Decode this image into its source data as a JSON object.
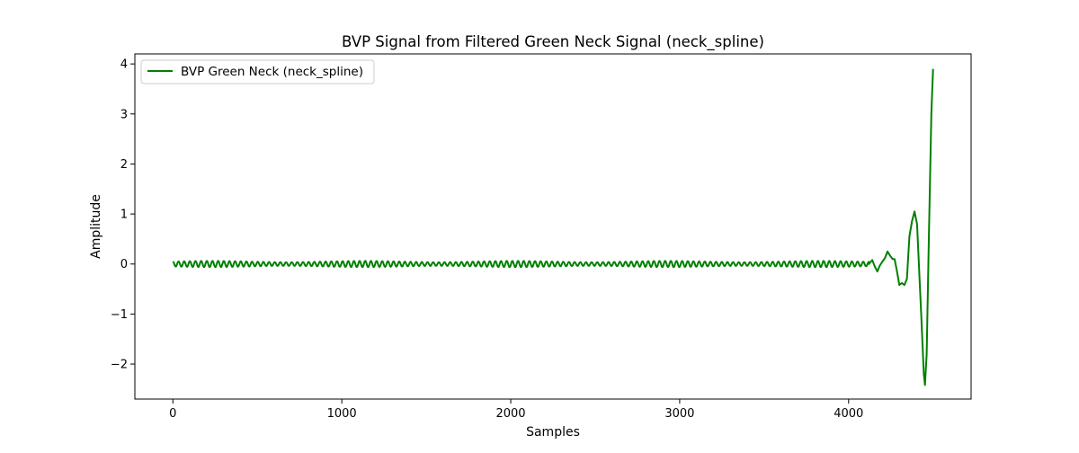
{
  "chart_data": {
    "type": "line",
    "title": "BVP Signal from Filtered Green Neck Signal (neck_spline)",
    "xlabel": "Samples",
    "ylabel": "Amplitude",
    "xlim": [
      -225,
      4725
    ],
    "ylim": [
      -2.7,
      4.2
    ],
    "xticks": [
      0,
      1000,
      2000,
      3000,
      4000
    ],
    "xtick_labels": [
      "0",
      "1000",
      "2000",
      "3000",
      "4000"
    ],
    "yticks": [
      -2,
      -1,
      0,
      1,
      2,
      3,
      4
    ],
    "ytick_labels": [
      "−2",
      "−1",
      "0",
      "1",
      "2",
      "3",
      "4"
    ],
    "grid": false,
    "legend": {
      "placement": "upper-left",
      "entries": [
        "BVP Green Neck (neck_spline)"
      ]
    },
    "series": [
      {
        "name": "BVP Green Neck (neck_spline)",
        "color": "#008000",
        "n_samples": 4500,
        "oscillation": {
          "x_start": 0,
          "x_end": 4120,
          "cycles": 123,
          "amplitude": 0.05,
          "offset": 0.0
        },
        "tail_points": [
          [
            4120,
            0.0
          ],
          [
            4140,
            0.08
          ],
          [
            4155,
            -0.05
          ],
          [
            4170,
            -0.15
          ],
          [
            4185,
            -0.03
          ],
          [
            4200,
            0.05
          ],
          [
            4215,
            0.12
          ],
          [
            4230,
            0.25
          ],
          [
            4245,
            0.17
          ],
          [
            4260,
            0.1
          ],
          [
            4272,
            0.1
          ],
          [
            4285,
            -0.12
          ],
          [
            4300,
            -0.42
          ],
          [
            4315,
            -0.38
          ],
          [
            4330,
            -0.42
          ],
          [
            4345,
            -0.3
          ],
          [
            4360,
            0.55
          ],
          [
            4375,
            0.85
          ],
          [
            4390,
            1.05
          ],
          [
            4405,
            0.8
          ],
          [
            4420,
            -0.3
          ],
          [
            4432,
            -1.2
          ],
          [
            4445,
            -2.2
          ],
          [
            4452,
            -2.42
          ],
          [
            4462,
            -1.8
          ],
          [
            4475,
            0.5
          ],
          [
            4490,
            3.0
          ],
          [
            4500,
            3.9
          ]
        ]
      }
    ]
  }
}
